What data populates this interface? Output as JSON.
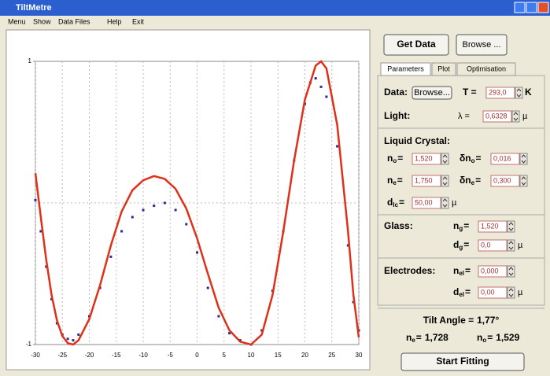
{
  "window": {
    "title": "TiltMetre"
  },
  "menu": [
    "Menu",
    "Show",
    "Data Files",
    "Help",
    "Exit"
  ],
  "buttons": {
    "get_data": "Get Data",
    "browse": "Browse ...",
    "start": "Start Fitting"
  },
  "tabs": [
    "Parameters",
    "Plot",
    "Optimisation"
  ],
  "equals": "=",
  "data_row": {
    "label": "Data:",
    "button": "Browse...",
    "t_label": "T =",
    "t_value": "293,0",
    "t_unit": "K"
  },
  "light": {
    "label": "Light:",
    "symbol": "λ =",
    "value": "0,6328",
    "unit": "µ"
  },
  "liquid_crystal": {
    "heading": "Liquid Crystal:",
    "fields": [
      {
        "symbol": "n",
        "sub": "o",
        "value": "1,520"
      },
      {
        "symbol": "δn",
        "sub": "o",
        "value": "0,016"
      },
      {
        "symbol": "n",
        "sub": "e",
        "value": "1,750"
      },
      {
        "symbol": "δn",
        "sub": "e",
        "value": "0,300"
      },
      {
        "symbol": "d",
        "sub": "lc",
        "value": "50,00",
        "unit": "µ"
      }
    ]
  },
  "glass": {
    "heading": "Glass:",
    "fields": [
      {
        "symbol": "n",
        "sub": "g",
        "value": "1,520"
      },
      {
        "symbol": "d",
        "sub": "g",
        "value": "0,0",
        "unit": "µ"
      }
    ]
  },
  "electrodes": {
    "heading": "Electrodes:",
    "fields": [
      {
        "symbol": "n",
        "sub": "el",
        "value": "0,000"
      },
      {
        "symbol": "d",
        "sub": "el",
        "value": "0,00",
        "unit": "µ"
      }
    ]
  },
  "results": {
    "tilt_label": "Tilt Angle =",
    "tilt_value": "1,77°",
    "items": [
      {
        "symbol": "n",
        "sub": "e",
        "value": "1,728"
      },
      {
        "symbol": "n",
        "sub": "o",
        "value": "1,529"
      }
    ]
  },
  "chart_data": {
    "type": "line",
    "xlim": [
      -30,
      30
    ],
    "xticks": [
      -30,
      -25,
      -20,
      -15,
      -10,
      -5,
      0,
      5,
      10,
      15,
      20,
      25,
      30
    ],
    "ylim": [
      -1,
      1
    ],
    "yticks": [
      -1,
      1
    ],
    "grid": true,
    "series": [
      {
        "name": "data",
        "color": "#2a2a9a",
        "style": "points",
        "x": [
          -30,
          -29,
          -28,
          -27,
          -26,
          -25,
          -24,
          -23,
          -22,
          -20,
          -18,
          -16,
          -14,
          -12,
          -10,
          -8,
          -6,
          -4,
          -2,
          0,
          2,
          4,
          6,
          8,
          10,
          12,
          14,
          16,
          18,
          20,
          21,
          22,
          23,
          24,
          26,
          28,
          29,
          30
        ],
        "values": [
          0.02,
          -0.2,
          -0.45,
          -0.68,
          -0.85,
          -0.93,
          -0.96,
          -0.97,
          -0.93,
          -0.8,
          -0.6,
          -0.38,
          -0.2,
          -0.1,
          -0.05,
          -0.02,
          0.0,
          -0.05,
          -0.15,
          -0.35,
          -0.6,
          -0.8,
          -0.92,
          -0.97,
          -1.0,
          -0.9,
          -0.62,
          -0.2,
          0.3,
          0.7,
          0.85,
          0.88,
          0.82,
          0.75,
          0.4,
          -0.3,
          -0.7,
          -0.9
        ]
      },
      {
        "name": "fit",
        "color": "#e03018",
        "style": "line",
        "x": [
          -30,
          -29,
          -28,
          -27,
          -26,
          -25,
          -24,
          -23,
          -22,
          -20,
          -18,
          -16,
          -14,
          -12,
          -10,
          -8,
          -6,
          -4,
          -2,
          0,
          2,
          4,
          6,
          8,
          10,
          12,
          14,
          16,
          18,
          20,
          22,
          23,
          24,
          26,
          28,
          29,
          30
        ],
        "values": [
          0.21,
          -0.1,
          -0.4,
          -0.65,
          -0.83,
          -0.94,
          -0.99,
          -1.0,
          -0.97,
          -0.82,
          -0.58,
          -0.3,
          -0.06,
          0.09,
          0.16,
          0.19,
          0.17,
          0.1,
          -0.04,
          -0.25,
          -0.5,
          -0.74,
          -0.9,
          -0.98,
          -1.0,
          -0.93,
          -0.65,
          -0.2,
          0.3,
          0.73,
          0.97,
          1.0,
          0.95,
          0.55,
          -0.2,
          -0.65,
          -0.95
        ]
      }
    ]
  }
}
